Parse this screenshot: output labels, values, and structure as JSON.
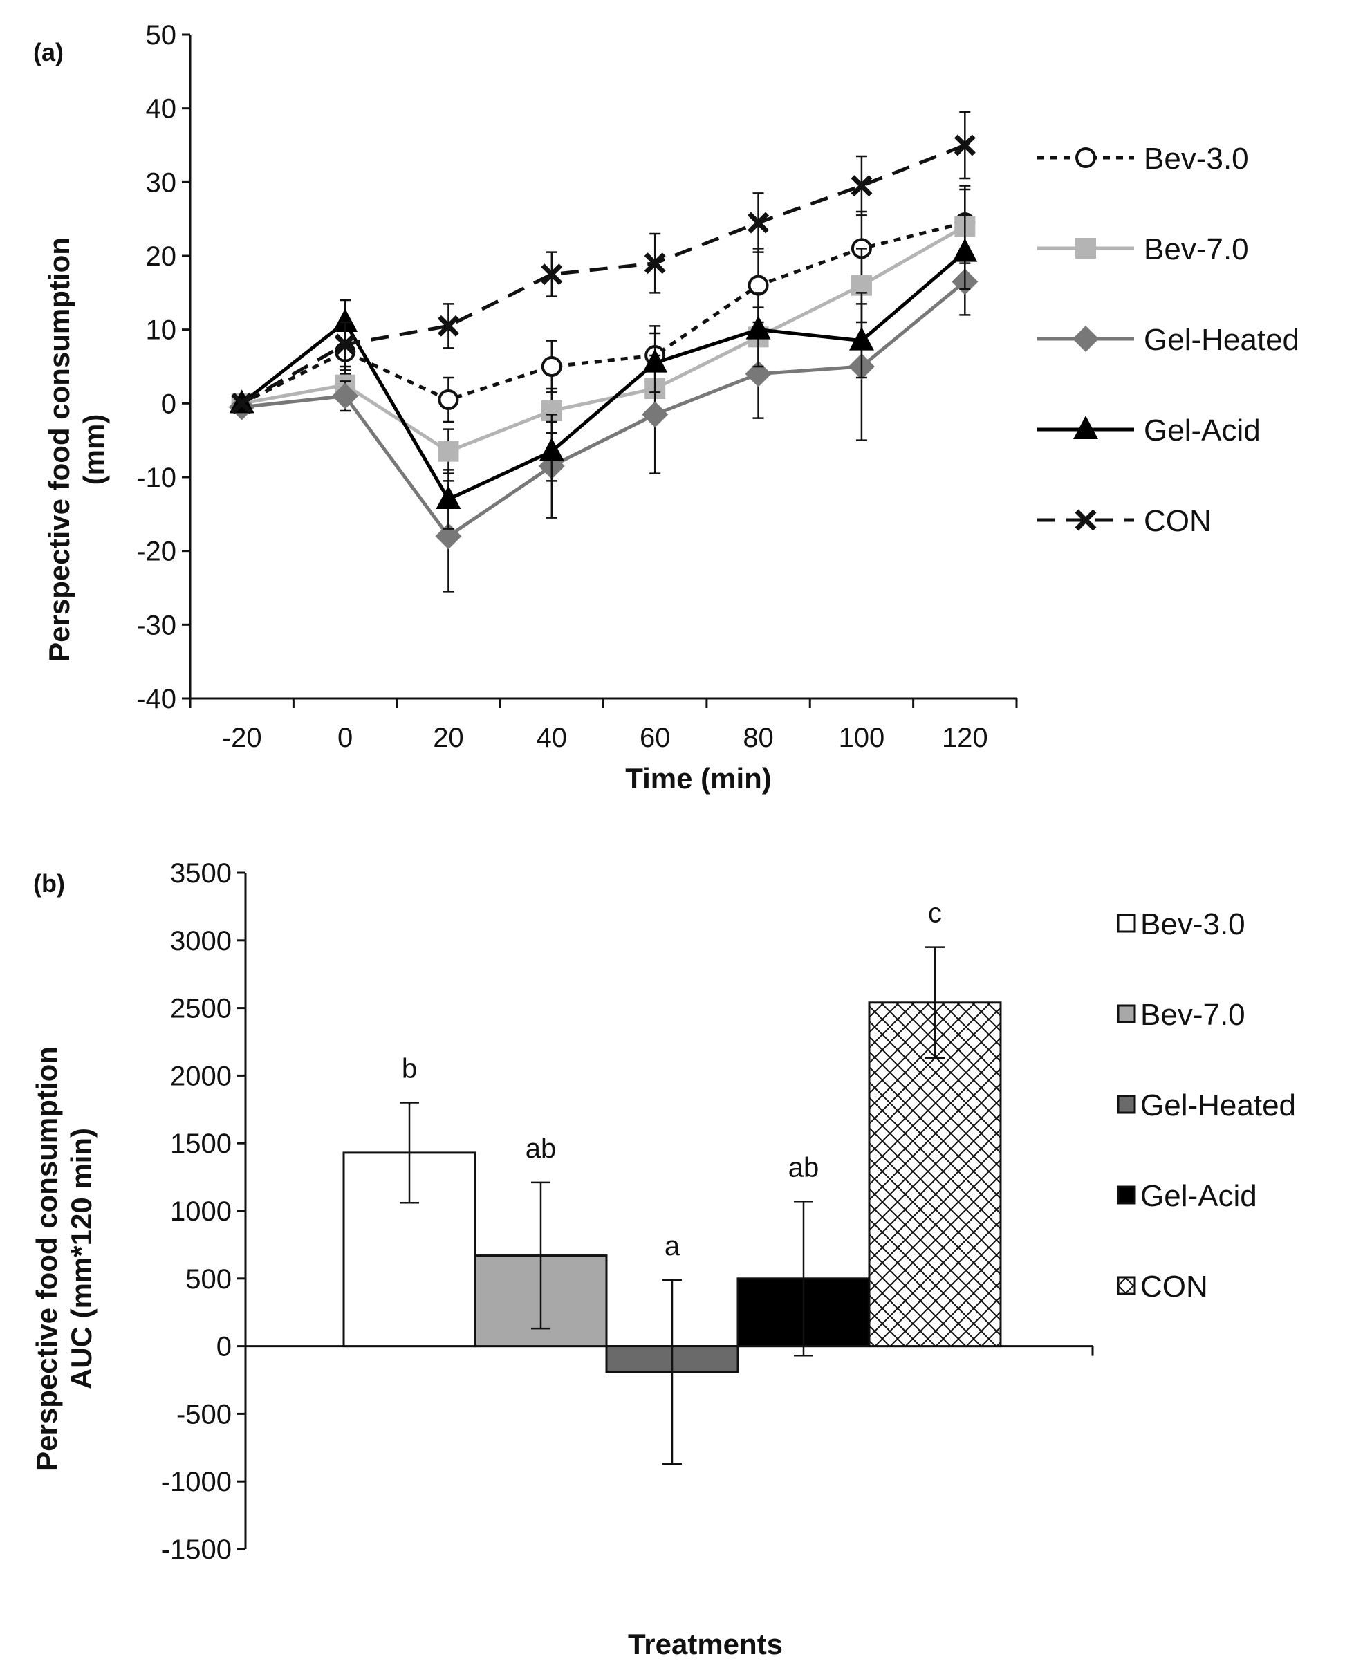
{
  "chart_data": [
    {
      "type": "line",
      "panel_label": "(a)",
      "xlabel": "Time (min)",
      "ylabel": [
        "Perspective food consumption",
        "(mm)"
      ],
      "x": [
        -20,
        0,
        20,
        40,
        60,
        80,
        100,
        120
      ],
      "x_tick_labels": [
        "-20",
        "0",
        "20",
        "40",
        "60",
        "80",
        "100",
        "120"
      ],
      "ylim": [
        -40,
        50
      ],
      "y_ticks": [
        -40,
        -30,
        -20,
        -10,
        0,
        10,
        20,
        30,
        40,
        50
      ],
      "y_tick_labels": [
        "-40",
        "-30",
        "-20",
        "-10",
        "0",
        "10",
        "20",
        "30",
        "40",
        "50"
      ],
      "grid": false,
      "legend_position": "right",
      "series": [
        {
          "name": "Bev-3.0",
          "color": "#111111",
          "dash": "short-dash",
          "marker": "open-circle",
          "values": [
            0,
            7,
            0.5,
            5,
            6.5,
            16,
            21,
            24.5
          ],
          "error": [
            0,
            3,
            3,
            3.5,
            4,
            5,
            5,
            5
          ]
        },
        {
          "name": "Bev-7.0",
          "color": "#b4b4b4",
          "dash": "solid",
          "marker": "square",
          "values": [
            0,
            2.5,
            -6.5,
            -1,
            2,
            9,
            16,
            24
          ],
          "error": [
            0,
            2,
            3,
            3,
            3.5,
            4,
            5,
            5
          ]
        },
        {
          "name": "Gel-Heated",
          "color": "#787878",
          "dash": "solid",
          "marker": "diamond",
          "values": [
            -0.5,
            1,
            -18,
            -8.5,
            -1.5,
            4,
            5,
            16.5
          ],
          "error": [
            0,
            2,
            7.5,
            7,
            8,
            6,
            10,
            4.5
          ]
        },
        {
          "name": "Gel-Acid",
          "color": "#000000",
          "dash": "solid",
          "marker": "triangle",
          "values": [
            0,
            11,
            -13,
            -6.5,
            5.5,
            10,
            8.5,
            20.5
          ],
          "error": [
            0,
            3,
            4,
            4,
            4,
            5,
            5,
            5
          ]
        },
        {
          "name": "CON",
          "color": "#111111",
          "dash": "long-dash",
          "marker": "x",
          "values": [
            0,
            8,
            10.5,
            17.5,
            19,
            24.5,
            29.5,
            35
          ],
          "error": [
            0,
            3,
            3,
            3,
            4,
            4,
            4,
            4.5
          ]
        }
      ]
    },
    {
      "type": "bar",
      "panel_label": "(b)",
      "xlabel": "Treatments",
      "ylabel": [
        "Perspective food consumption",
        "AUC (mm*120 min)"
      ],
      "categories": [
        "Bev-3.0",
        "Bev-7.0",
        "Gel-Heated",
        "Gel-Acid",
        "CON"
      ],
      "values": [
        1430,
        670,
        -190,
        500,
        2540
      ],
      "error": [
        370,
        540,
        680,
        570,
        410
      ],
      "significance_letters": [
        "b",
        "ab",
        "a",
        "ab",
        "c"
      ],
      "colors": [
        "#ffffff",
        "#a8a8a8",
        "#6a6a6a",
        "#000000",
        "crosshatch"
      ],
      "ylim": [
        -1500,
        3500
      ],
      "y_ticks": [
        -1500,
        -1000,
        -500,
        0,
        500,
        1000,
        1500,
        2000,
        2500,
        3000,
        3500
      ],
      "y_tick_labels": [
        "-1500",
        "-1000",
        "-500",
        "0",
        "500",
        "1000",
        "1500",
        "2000",
        "2500",
        "3000",
        "3500"
      ],
      "grid": false,
      "legend_position": "right"
    }
  ]
}
